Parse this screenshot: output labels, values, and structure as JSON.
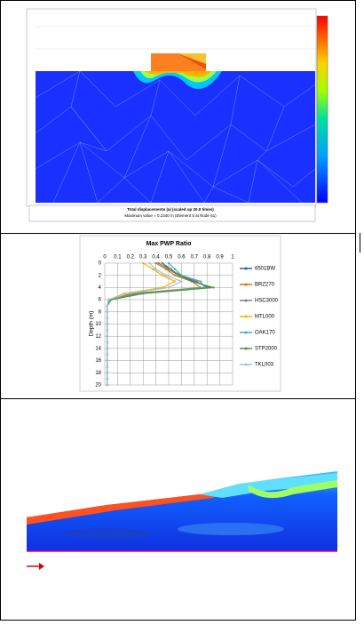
{
  "figure_1": {
    "caption_line_1": "Total displacements |u| (scaled up 20.0 times)",
    "caption_line_2": "Maximum value = 0.2340 m (Element 5 at Node 61)"
  },
  "chart_data": {
    "type": "line",
    "title": "Max PWP Ratio",
    "y_label": "Depth (m)",
    "depths": [
      0,
      1,
      2,
      3,
      4,
      5,
      6,
      7,
      8,
      9,
      10,
      11,
      12,
      13,
      14,
      15,
      16,
      17,
      18,
      19,
      20
    ],
    "series": [
      {
        "name": "6501BW",
        "color": "#2e5fa3",
        "values": [
          0.45,
          0.5,
          0.58,
          0.7,
          0.82,
          0.2,
          0.03,
          0.02,
          0.02,
          0.02,
          0.02,
          0.02,
          0.02,
          0.02,
          0.02,
          0.02,
          0.02,
          0.02,
          0.02,
          0.02,
          0.02
        ]
      },
      {
        "name": "BRZ270",
        "color": "#e36c0a",
        "values": [
          0.4,
          0.48,
          0.55,
          0.68,
          0.75,
          0.22,
          0.03,
          0.02,
          0.02,
          0.02,
          0.02,
          0.02,
          0.02,
          0.02,
          0.02,
          0.02,
          0.02,
          0.02,
          0.02,
          0.02,
          0.02
        ]
      },
      {
        "name": "HSC3000",
        "color": "#808080",
        "values": [
          0.42,
          0.5,
          0.6,
          0.72,
          0.8,
          0.25,
          0.04,
          0.02,
          0.02,
          0.02,
          0.02,
          0.02,
          0.02,
          0.02,
          0.02,
          0.02,
          0.02,
          0.02,
          0.02,
          0.02,
          0.02
        ]
      },
      {
        "name": "MTL000",
        "color": "#f2b400",
        "values": [
          0.3,
          0.38,
          0.45,
          0.55,
          0.45,
          0.15,
          0.03,
          0.02,
          0.02,
          0.02,
          0.02,
          0.02,
          0.02,
          0.02,
          0.02,
          0.02,
          0.02,
          0.02,
          0.02,
          0.02,
          0.02
        ]
      },
      {
        "name": "OAK170",
        "color": "#4aa3d8",
        "values": [
          0.5,
          0.55,
          0.6,
          0.75,
          0.78,
          0.28,
          0.04,
          0.02,
          0.02,
          0.02,
          0.02,
          0.02,
          0.02,
          0.02,
          0.02,
          0.02,
          0.02,
          0.02,
          0.02,
          0.02,
          0.02
        ]
      },
      {
        "name": "STP2000",
        "color": "#4f9a3a",
        "values": [
          0.45,
          0.52,
          0.58,
          0.68,
          0.85,
          0.3,
          0.05,
          0.02,
          0.02,
          0.02,
          0.02,
          0.02,
          0.02,
          0.02,
          0.02,
          0.02,
          0.02,
          0.02,
          0.02,
          0.02,
          0.02
        ]
      },
      {
        "name": "TKL003",
        "color": "#9dc3e6",
        "values": [
          0.35,
          0.4,
          0.48,
          0.6,
          0.5,
          0.18,
          0.03,
          0.02,
          0.02,
          0.02,
          0.02,
          0.02,
          0.02,
          0.02,
          0.02,
          0.02,
          0.02,
          0.02,
          0.02,
          0.02,
          0.02
        ]
      }
    ],
    "xlim": [
      0,
      1
    ],
    "xticks": [
      0,
      0.1,
      0.2,
      0.3,
      0.4,
      0.5,
      0.6,
      0.7,
      0.8,
      0.9,
      1
    ],
    "ylim": [
      0,
      20
    ],
    "yticks": [
      0,
      2,
      4,
      6,
      8,
      10,
      12,
      14,
      16,
      18,
      20
    ],
    "grid": true
  }
}
